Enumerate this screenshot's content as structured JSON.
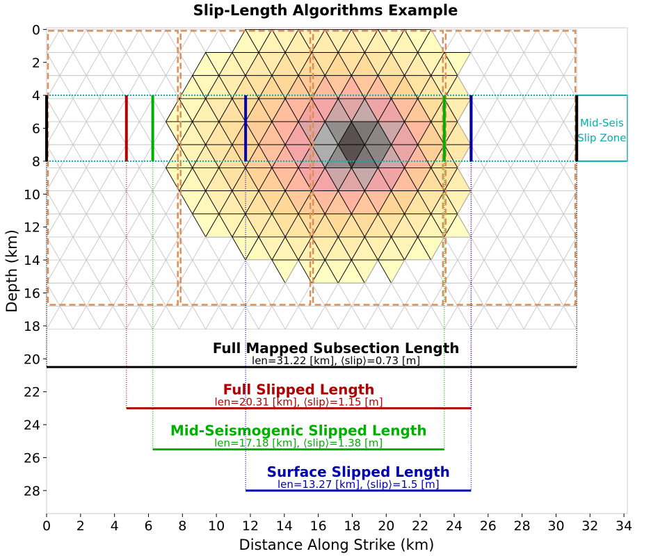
{
  "chart_data": {
    "type": "scatter",
    "title": "Slip-Length Algorithms Example",
    "xlabel": "Distance Along Strike (km)",
    "ylabel": "Depth (km)",
    "xlim": [
      0,
      34.2
    ],
    "ylim": [
      29.4,
      -0.1
    ],
    "xticks": [
      "0",
      "2",
      "4",
      "6",
      "8",
      "10",
      "12",
      "14",
      "16",
      "18",
      "20",
      "22",
      "24",
      "26",
      "28",
      "30",
      "32",
      "34"
    ],
    "yticks": [
      "0",
      "2",
      "4",
      "6",
      "8",
      "10",
      "12",
      "14",
      "16",
      "18",
      "20",
      "22",
      "24",
      "26",
      "28"
    ],
    "grid": false,
    "subsection_boundaries_km": [
      0,
      7.81,
      15.61,
      23.42,
      31.22
    ],
    "subsection_depth_range_km": [
      0,
      16.8
    ],
    "mid_seismogenic_depth_km": [
      4,
      8
    ],
    "zone_label": [
      "Mid-Seis",
      "Slip Zone"
    ],
    "colors": {
      "black": "#000000",
      "red": "#b00000",
      "green": "#00b000",
      "blue": "#0000b0",
      "cyan": "#00b0b0",
      "orange_dash": "#d9905a"
    },
    "lengths": [
      {
        "name": "Full Mapped Subsection Length",
        "label": "len=31.22 [km], ⟨slip⟩=0.73 [m]",
        "x_start": 0.0,
        "x_end": 31.22,
        "y": 20.5,
        "color": "#000000"
      },
      {
        "name": "Full Slipped Length",
        "label": "len=20.31 [km], ⟨slip⟩=1.15 [m]",
        "x_start": 4.7,
        "x_end": 25.0,
        "y": 23.0,
        "color": "#b00000"
      },
      {
        "name": "Mid-Seismogenic Slipped Length",
        "label": "len=17.18 [km], ⟨slip⟩=1.38 [m]",
        "x_start": 6.25,
        "x_end": 23.42,
        "y": 25.5,
        "color": "#00b000"
      },
      {
        "name": "Surface Slipped Length",
        "label": "len=13.27 [km], ⟨slip⟩=1.5 [m]",
        "x_start": 11.72,
        "x_end": 25.0,
        "y": 28.0,
        "color": "#0000b0"
      }
    ]
  }
}
